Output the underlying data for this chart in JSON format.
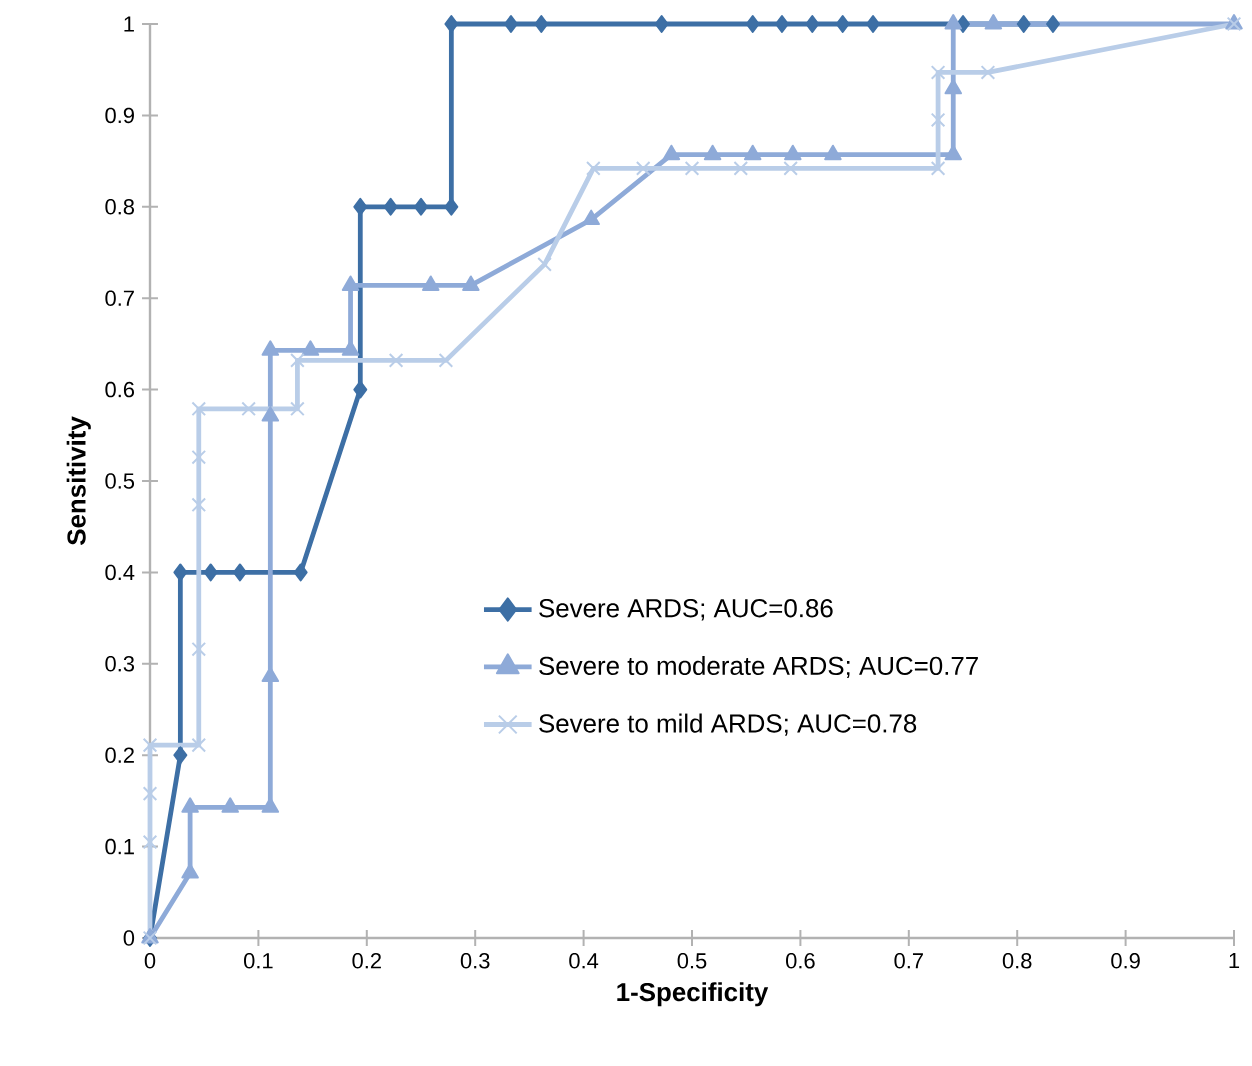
{
  "chart_data": {
    "type": "line",
    "xlabel": "1-Specificity",
    "ylabel": "Sensitivity",
    "xlim": [
      0,
      1
    ],
    "ylim": [
      0,
      1
    ],
    "xticks": [
      0,
      0.1,
      0.2,
      0.3,
      0.4,
      0.5,
      0.6,
      0.7,
      0.8,
      0.9,
      1
    ],
    "yticks": [
      0,
      0.1,
      0.2,
      0.3,
      0.4,
      0.5,
      0.6,
      0.7,
      0.8,
      0.9,
      1
    ],
    "grid": false,
    "legend": "bottom right",
    "line_style": "solid",
    "series": [
      {
        "name": "Severe ARDS; AUC=0.86",
        "color": "#3d6fa5",
        "marker": "diamond",
        "x": [
          0,
          0.028,
          0.028,
          0.056,
          0.083,
          0.139,
          0.194,
          0.194,
          0.222,
          0.25,
          0.278,
          0.278,
          0.333,
          0.361,
          0.472,
          0.556,
          0.583,
          0.611,
          0.639,
          0.667,
          0.75,
          0.806,
          0.833
        ],
        "values": [
          0,
          0.2,
          0.4,
          0.4,
          0.4,
          0.4,
          0.6,
          0.8,
          0.8,
          0.8,
          0.8,
          1,
          1,
          1,
          1,
          1,
          1,
          1,
          1,
          1,
          1,
          1,
          1
        ]
      },
      {
        "name": "Severe to moderate ARDS; AUC=0.77",
        "color": "#8eaad8",
        "marker": "triangle",
        "x": [
          0,
          0.037,
          0.037,
          0.074,
          0.111,
          0.111,
          0.111,
          0.111,
          0.148,
          0.185,
          0.185,
          0.259,
          0.296,
          0.407,
          0.481,
          0.519,
          0.556,
          0.593,
          0.63,
          0.741,
          0.741,
          0.741,
          0.778,
          1
        ],
        "values": [
          0,
          0.071,
          0.143,
          0.143,
          0.143,
          0.286,
          0.571,
          0.643,
          0.643,
          0.643,
          0.714,
          0.714,
          0.714,
          0.786,
          0.857,
          0.857,
          0.857,
          0.857,
          0.857,
          0.857,
          0.929,
          1,
          1,
          1
        ]
      },
      {
        "name": "Severe to mild ARDS; AUC=0.78",
        "color": "#b9cde8",
        "marker": "cross",
        "x": [
          0,
          0,
          0,
          0,
          0.045,
          0.045,
          0.045,
          0.045,
          0.045,
          0.091,
          0.136,
          0.136,
          0.227,
          0.273,
          0.364,
          0.409,
          0.455,
          0.5,
          0.545,
          0.591,
          0.727,
          0.727,
          0.727,
          0.773,
          1
        ],
        "values": [
          0,
          0.105,
          0.158,
          0.211,
          0.211,
          0.316,
          0.474,
          0.526,
          0.579,
          0.579,
          0.579,
          0.632,
          0.632,
          0.632,
          0.737,
          0.842,
          0.842,
          0.842,
          0.842,
          0.842,
          0.842,
          0.895,
          0.947,
          0.947,
          1
        ]
      }
    ]
  }
}
